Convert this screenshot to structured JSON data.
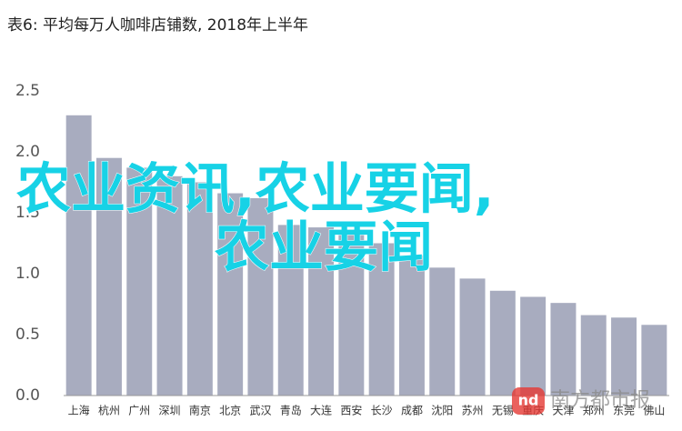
{
  "chart_data": {
    "type": "bar",
    "title": "表6: 平均每万人咖啡店铺数, 2018年上半年",
    "categories": [
      "上海",
      "杭州",
      "广州",
      "深圳",
      "南京",
      "北京",
      "武汉",
      "青岛",
      "大连",
      "西安",
      "长沙",
      "成都",
      "沈阳",
      "苏州",
      "无锡",
      "重庆",
      "天津",
      "郑州",
      "东莞",
      "佛山"
    ],
    "values": [
      2.3,
      1.95,
      1.87,
      1.8,
      1.75,
      1.66,
      1.62,
      1.4,
      1.38,
      1.35,
      1.25,
      1.15,
      1.05,
      0.96,
      0.86,
      0.81,
      0.76,
      0.66,
      0.64,
      0.58
    ],
    "color": "#a8acbf",
    "ylim": [
      0,
      2.5
    ],
    "yticks": [
      {
        "value": 0,
        "label": "0.0"
      },
      {
        "value": 0.5,
        "label": "0.5"
      },
      {
        "value": 1,
        "label": "1.0"
      },
      {
        "value": 1.5,
        "label": "1.5"
      },
      {
        "value": 2,
        "label": "2.0"
      },
      {
        "value": 2.5,
        "label": "2.5"
      }
    ],
    "grid": false,
    "overlay": [
      "农业资讯,农业要闻,",
      "农业要闻"
    ],
    "watermark_logo": "nd",
    "watermark": "南方都市报"
  }
}
